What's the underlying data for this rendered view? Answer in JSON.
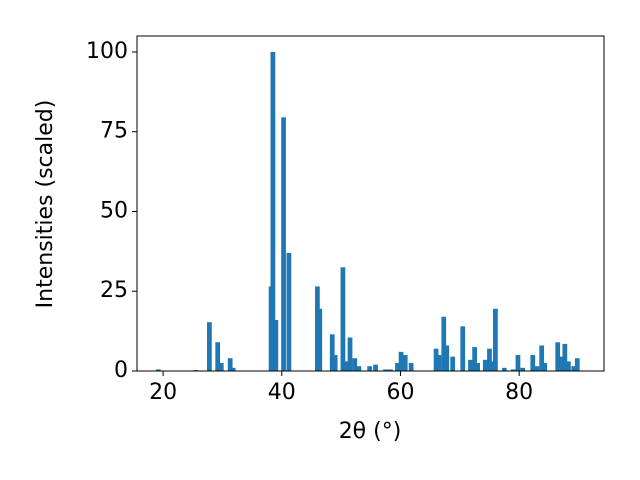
{
  "chart_data": {
    "type": "bar",
    "xlabel": "2θ (°)",
    "ylabel": "Intensities (scaled)",
    "color": "#1f77b4",
    "x": [
      19.2,
      25.5,
      27.8,
      29.2,
      29.8,
      31.3,
      31.8,
      38.2,
      38.5,
      39.0,
      40.3,
      41.2,
      46.0,
      46.4,
      48.5,
      49.0,
      50.3,
      50.8,
      51.5,
      52.3,
      53.0,
      54.8,
      55.8,
      57.5,
      58.3,
      59.5,
      60.1,
      60.8,
      61.8,
      66.0,
      66.5,
      67.3,
      67.8,
      68.8,
      70.5,
      71.8,
      72.5,
      73.0,
      74.3,
      75.0,
      75.5,
      76.0,
      77.5,
      79.0,
      79.8,
      80.6,
      82.3,
      83.0,
      83.8,
      84.3,
      86.5,
      87.2,
      87.7,
      88.3,
      89.2,
      89.8
    ],
    "values": [
      0.5,
      0.3,
      15.3,
      9,
      2.5,
      4,
      1,
      26.5,
      100,
      16,
      79.5,
      37,
      26.5,
      19.5,
      11.5,
      5,
      32.5,
      3,
      10.5,
      4,
      1.5,
      1.5,
      2,
      0.5,
      0.5,
      2.5,
      6,
      5,
      2.5,
      7,
      5,
      17,
      8,
      4.5,
      14,
      3.5,
      7.5,
      2.5,
      3.5,
      7,
      3,
      19.5,
      1,
      0.5,
      5,
      1,
      5,
      1.5,
      8,
      2.5,
      9,
      4.5,
      8.5,
      3,
      1.5,
      4
    ],
    "xlim": [
      15.6,
      94.3
    ],
    "ylim": [
      0,
      105
    ],
    "xticks": [
      20,
      40,
      60,
      80
    ],
    "yticks": [
      0,
      25,
      50,
      75,
      100
    ]
  }
}
